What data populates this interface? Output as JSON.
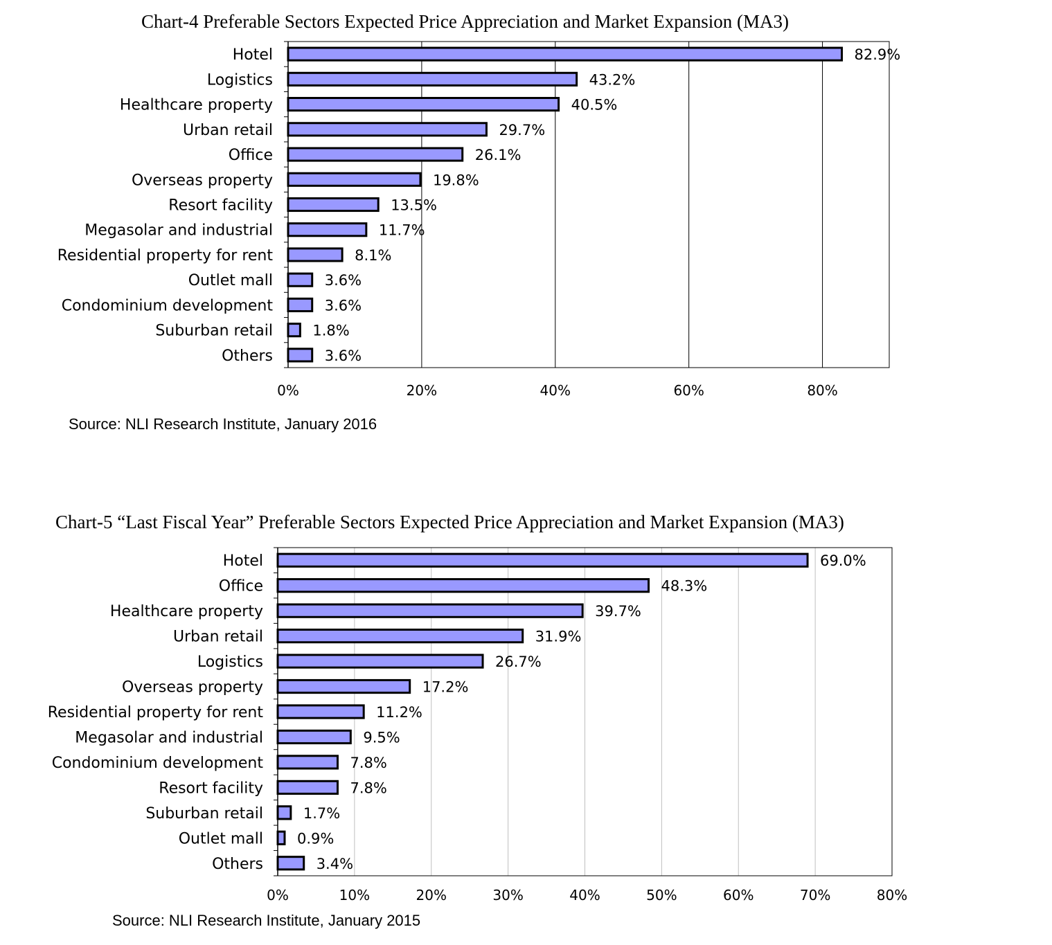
{
  "colors": {
    "bar_fill": "#9999ff",
    "bar_stroke": "#000000",
    "grid": "#000000"
  },
  "chart_data": [
    {
      "type": "bar",
      "orientation": "horizontal",
      "title": "Chart-4  Preferable Sectors Expected Price Appreciation and Market Expansion (MA3)",
      "source": "Source: NLI Research Institute, January 2016",
      "categories": [
        "Hotel",
        "Logistics",
        "Healthcare property",
        "Urban retail",
        "Office",
        "Overseas property",
        "Resort facility",
        "Megasolar and industrial",
        "Residential property for rent",
        "Outlet mall",
        "Condominium development",
        "Suburban retail",
        "Others"
      ],
      "values": [
        82.9,
        43.2,
        40.5,
        29.7,
        26.1,
        19.8,
        13.5,
        11.7,
        8.1,
        3.6,
        3.6,
        1.8,
        3.6
      ],
      "value_labels": [
        "82.9%",
        "43.2%",
        "40.5%",
        "29.7%",
        "26.1%",
        "19.8%",
        "13.5%",
        "11.7%",
        "8.1%",
        "3.6%",
        "3.6%",
        "1.8%",
        "3.6%"
      ],
      "xlim": [
        0,
        90
      ],
      "ticks": [
        0,
        20,
        40,
        60,
        80
      ],
      "tick_labels": [
        "0%",
        "20%",
        "40%",
        "60%",
        "80%"
      ],
      "grid": true,
      "legend": "none"
    },
    {
      "type": "bar",
      "orientation": "horizontal",
      "title": "Chart-5  “Last Fiscal Year” Preferable Sectors Expected Price Appreciation and Market Expansion (MA3)",
      "source": "Source: NLI Research Institute, January 2015",
      "categories": [
        "Hotel",
        "Office",
        "Healthcare property",
        "Urban retail",
        "Logistics",
        "Overseas property",
        "Residential property for rent",
        "Megasolar and industrial",
        "Condominium development",
        "Resort facility",
        "Suburban retail",
        "Outlet mall",
        "Others"
      ],
      "values": [
        69.0,
        48.3,
        39.7,
        31.9,
        26.7,
        17.2,
        11.2,
        9.5,
        7.8,
        7.8,
        1.7,
        0.9,
        3.4
      ],
      "value_labels": [
        "69.0%",
        "48.3%",
        "39.7%",
        "31.9%",
        "26.7%",
        "17.2%",
        "11.2%",
        "9.5%",
        "7.8%",
        "7.8%",
        "1.7%",
        "0.9%",
        "3.4%"
      ],
      "xlim": [
        0,
        80
      ],
      "ticks": [
        0,
        10,
        20,
        30,
        40,
        50,
        60,
        70,
        80
      ],
      "tick_labels": [
        "0%",
        "10%",
        "20%",
        "30%",
        "40%",
        "50%",
        "60%",
        "70%",
        "80%"
      ],
      "grid": true,
      "legend": "none"
    }
  ]
}
